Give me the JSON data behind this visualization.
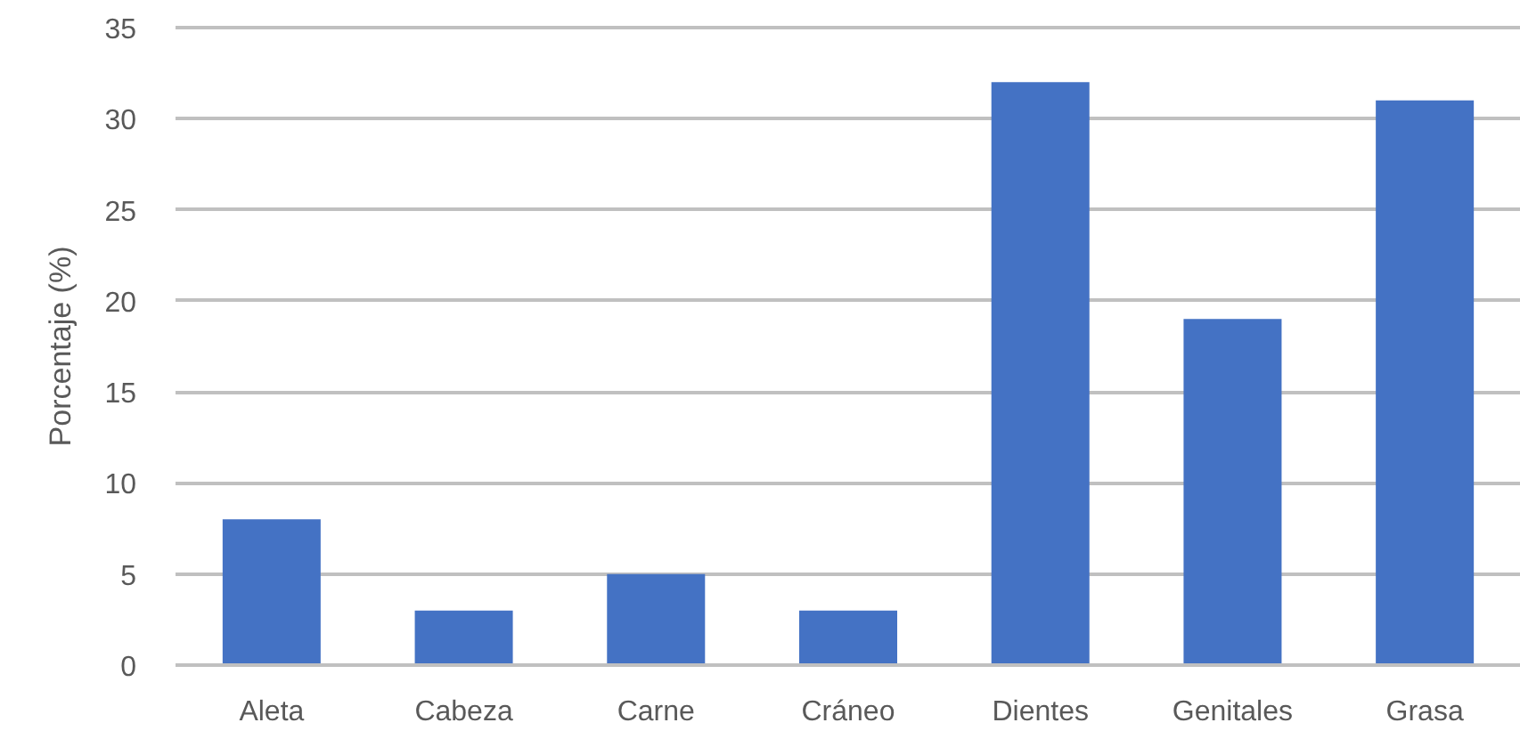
{
  "chart_data": {
    "type": "bar",
    "ylabel": "Porcentaje (%)",
    "categories": [
      "Aleta",
      "Cabeza",
      "Carne",
      "Cráneo",
      "Dientes",
      "Genitales",
      "Grasa"
    ],
    "values": [
      8,
      3,
      5,
      3,
      32,
      19,
      31
    ],
    "color": "#4472c4",
    "ylim": [
      0,
      35
    ],
    "yticks": [
      0,
      5,
      10,
      15,
      20,
      25,
      30,
      35
    ],
    "grid": "y"
  }
}
